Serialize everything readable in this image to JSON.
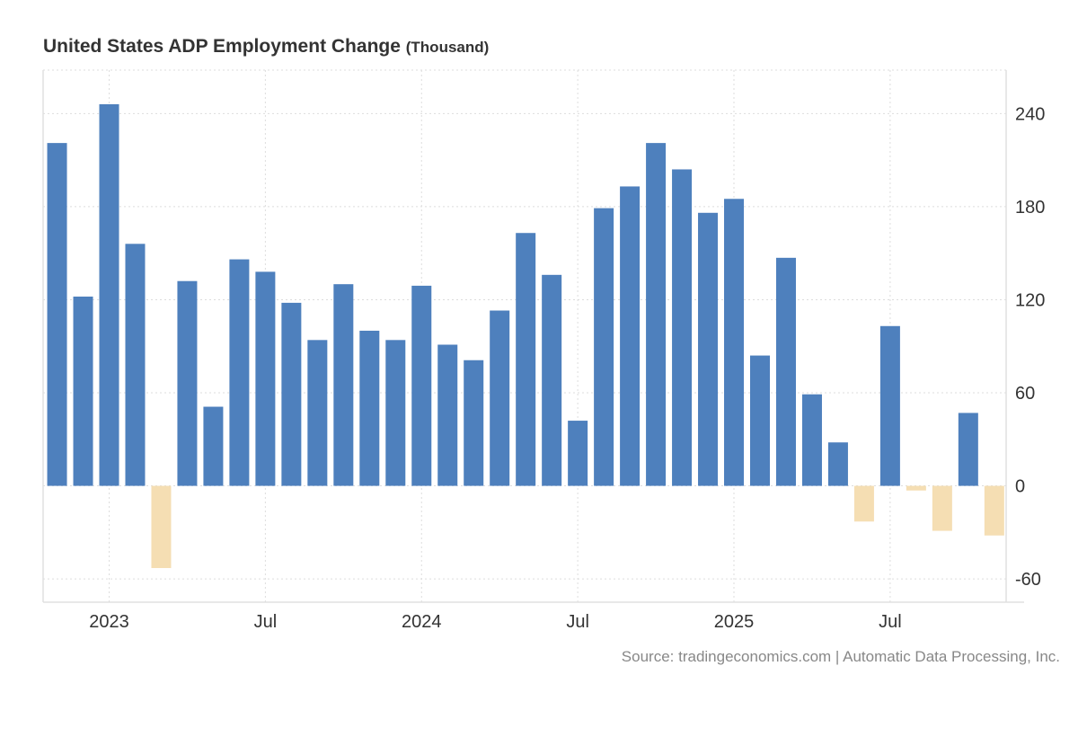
{
  "chart_data": {
    "type": "bar",
    "title": "United States ADP Employment Change",
    "unit": "(Thousand)",
    "xlabel": "",
    "ylabel": "",
    "ylim": [
      -75,
      268
    ],
    "grid": true,
    "y_axis_side": "right",
    "y_ticks": [
      -60,
      0,
      60,
      120,
      180,
      240
    ],
    "x_tick_labels": [
      {
        "label": "2023",
        "category": "2023-01"
      },
      {
        "label": "Jul",
        "category": "2023-07"
      },
      {
        "label": "2024",
        "category": "2024-01"
      },
      {
        "label": "Jul",
        "category": "2024-07"
      },
      {
        "label": "2025",
        "category": "2025-01"
      },
      {
        "label": "Jul",
        "category": "2025-07"
      }
    ],
    "categories": [
      "2022-11",
      "2022-12",
      "2023-01",
      "2023-02",
      "2023-03",
      "2023-04",
      "2023-05",
      "2023-06",
      "2023-07",
      "2023-08",
      "2023-09",
      "2023-10",
      "2023-11",
      "2023-12",
      "2024-01",
      "2024-02",
      "2024-03",
      "2024-04",
      "2024-05",
      "2024-06",
      "2024-07",
      "2024-08",
      "2024-09",
      "2024-10",
      "2024-11",
      "2024-12",
      "2025-01",
      "2025-02",
      "2025-03",
      "2025-04",
      "2025-05",
      "2025-06",
      "2025-07",
      "2025-08",
      "2025-09",
      "2025-10",
      "2025-11"
    ],
    "values": [
      221,
      122,
      246,
      156,
      -53,
      132,
      51,
      146,
      138,
      118,
      94,
      130,
      100,
      94,
      129,
      91,
      81,
      113,
      163,
      136,
      42,
      179,
      193,
      221,
      204,
      176,
      185,
      84,
      147,
      59,
      28,
      -23,
      103,
      -3,
      -29,
      47,
      -32
    ],
    "colors": {
      "positive": "#4e80bd",
      "negative": "#f5deb3",
      "grid": "#dddddd",
      "axis": "#e0e0e0",
      "text": "#333333"
    }
  },
  "source": "Source: tradingeconomics.com | Automatic Data Processing, Inc."
}
